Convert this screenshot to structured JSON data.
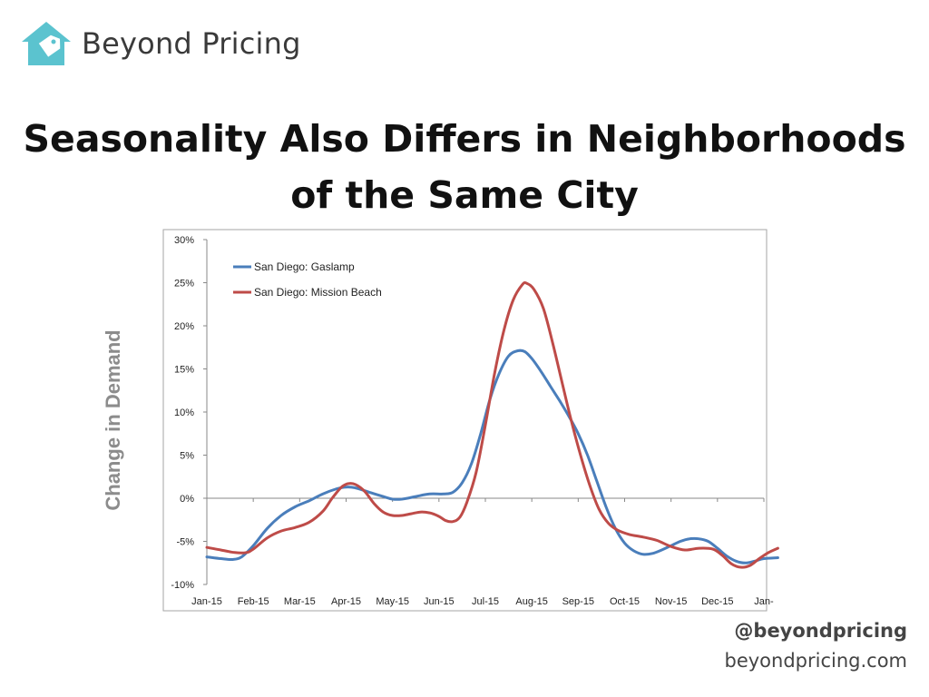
{
  "brand": {
    "name": "Beyond Pricing",
    "logo_icon": "house-tag-icon",
    "logo_color": "#5bc3cf"
  },
  "slide": {
    "title_line1": "Seasonality Also Differs in Neighborhoods",
    "title_line2": "of the Same City"
  },
  "footer": {
    "handle": "@beyondpricing",
    "website": "beyondpricing.com"
  },
  "chart_data": {
    "type": "line",
    "title": "",
    "ylabel": "Change in Demand",
    "xlabel": "",
    "x_tick_labels": [
      "Jan-15",
      "Feb-15",
      "Mar-15",
      "Apr-15",
      "May-15",
      "Jun-15",
      "Jul-15",
      "Aug-15",
      "Sep-15",
      "Oct-15",
      "Nov-15",
      "Dec-15",
      "Jan-"
    ],
    "y_tick_labels": [
      "30%",
      "25%",
      "20%",
      "15%",
      "10%",
      "5%",
      "0%",
      "-5%",
      "-10%"
    ],
    "ylim": [
      -10,
      30
    ],
    "grid": false,
    "legend_position": "top-left",
    "series": [
      {
        "name": "San Diego:  Gaslamp",
        "color": "#4a7ebb",
        "points": [
          [
            0,
            -6.8
          ],
          [
            0.3,
            -7.0
          ],
          [
            0.55,
            -7.1
          ],
          [
            0.75,
            -6.8
          ],
          [
            1.0,
            -5.5
          ],
          [
            1.3,
            -3.5
          ],
          [
            1.6,
            -2.0
          ],
          [
            1.9,
            -1.0
          ],
          [
            2.2,
            -0.3
          ],
          [
            2.5,
            0.5
          ],
          [
            2.8,
            1.1
          ],
          [
            3.0,
            1.3
          ],
          [
            3.2,
            1.2
          ],
          [
            3.5,
            0.7
          ],
          [
            3.8,
            0.2
          ],
          [
            4.0,
            -0.1
          ],
          [
            4.2,
            -0.1
          ],
          [
            4.5,
            0.2
          ],
          [
            4.8,
            0.5
          ],
          [
            5.1,
            0.5
          ],
          [
            5.3,
            0.7
          ],
          [
            5.5,
            1.8
          ],
          [
            5.7,
            4.0
          ],
          [
            5.9,
            7.5
          ],
          [
            6.1,
            11.5
          ],
          [
            6.3,
            14.5
          ],
          [
            6.5,
            16.5
          ],
          [
            6.7,
            17.1
          ],
          [
            6.85,
            17.0
          ],
          [
            7.0,
            16.2
          ],
          [
            7.2,
            14.7
          ],
          [
            7.4,
            13.0
          ],
          [
            7.6,
            11.3
          ],
          [
            7.8,
            9.5
          ],
          [
            8.0,
            7.5
          ],
          [
            8.2,
            5.0
          ],
          [
            8.4,
            2.0
          ],
          [
            8.6,
            -1.0
          ],
          [
            8.8,
            -3.5
          ],
          [
            9.0,
            -5.2
          ],
          [
            9.2,
            -6.1
          ],
          [
            9.4,
            -6.5
          ],
          [
            9.6,
            -6.4
          ],
          [
            9.8,
            -6.0
          ],
          [
            10.0,
            -5.5
          ],
          [
            10.2,
            -5.0
          ],
          [
            10.4,
            -4.7
          ],
          [
            10.6,
            -4.7
          ],
          [
            10.8,
            -5.0
          ],
          [
            11.0,
            -5.8
          ],
          [
            11.2,
            -6.7
          ],
          [
            11.4,
            -7.3
          ],
          [
            11.6,
            -7.5
          ],
          [
            11.8,
            -7.3
          ],
          [
            12.0,
            -7.0
          ],
          [
            12.3,
            -6.9
          ]
        ]
      },
      {
        "name": "San Diego:  Mission Beach",
        "color": "#be4b48",
        "points": [
          [
            0,
            -5.7
          ],
          [
            0.3,
            -6.0
          ],
          [
            0.6,
            -6.3
          ],
          [
            0.85,
            -6.3
          ],
          [
            1.0,
            -5.9
          ],
          [
            1.3,
            -4.6
          ],
          [
            1.6,
            -3.8
          ],
          [
            1.9,
            -3.4
          ],
          [
            2.2,
            -2.8
          ],
          [
            2.5,
            -1.5
          ],
          [
            2.7,
            0.0
          ],
          [
            2.9,
            1.3
          ],
          [
            3.05,
            1.7
          ],
          [
            3.2,
            1.6
          ],
          [
            3.4,
            0.8
          ],
          [
            3.6,
            -0.6
          ],
          [
            3.8,
            -1.6
          ],
          [
            4.0,
            -2.0
          ],
          [
            4.2,
            -2.0
          ],
          [
            4.4,
            -1.8
          ],
          [
            4.6,
            -1.6
          ],
          [
            4.8,
            -1.7
          ],
          [
            5.0,
            -2.1
          ],
          [
            5.15,
            -2.6
          ],
          [
            5.3,
            -2.7
          ],
          [
            5.45,
            -2.2
          ],
          [
            5.6,
            -0.5
          ],
          [
            5.8,
            3.0
          ],
          [
            6.0,
            8.5
          ],
          [
            6.2,
            14.5
          ],
          [
            6.4,
            19.5
          ],
          [
            6.6,
            23.0
          ],
          [
            6.8,
            24.8
          ],
          [
            6.9,
            24.9
          ],
          [
            7.05,
            24.2
          ],
          [
            7.25,
            22.0
          ],
          [
            7.45,
            18.0
          ],
          [
            7.65,
            13.5
          ],
          [
            7.85,
            9.0
          ],
          [
            8.05,
            5.0
          ],
          [
            8.25,
            1.5
          ],
          [
            8.45,
            -1.3
          ],
          [
            8.65,
            -2.9
          ],
          [
            8.85,
            -3.7
          ],
          [
            9.1,
            -4.2
          ],
          [
            9.4,
            -4.5
          ],
          [
            9.7,
            -4.9
          ],
          [
            10.0,
            -5.6
          ],
          [
            10.3,
            -6.0
          ],
          [
            10.6,
            -5.8
          ],
          [
            10.9,
            -5.9
          ],
          [
            11.1,
            -6.6
          ],
          [
            11.3,
            -7.6
          ],
          [
            11.5,
            -8.0
          ],
          [
            11.7,
            -7.8
          ],
          [
            11.9,
            -7.0
          ],
          [
            12.1,
            -6.3
          ],
          [
            12.3,
            -5.8
          ]
        ]
      }
    ]
  }
}
